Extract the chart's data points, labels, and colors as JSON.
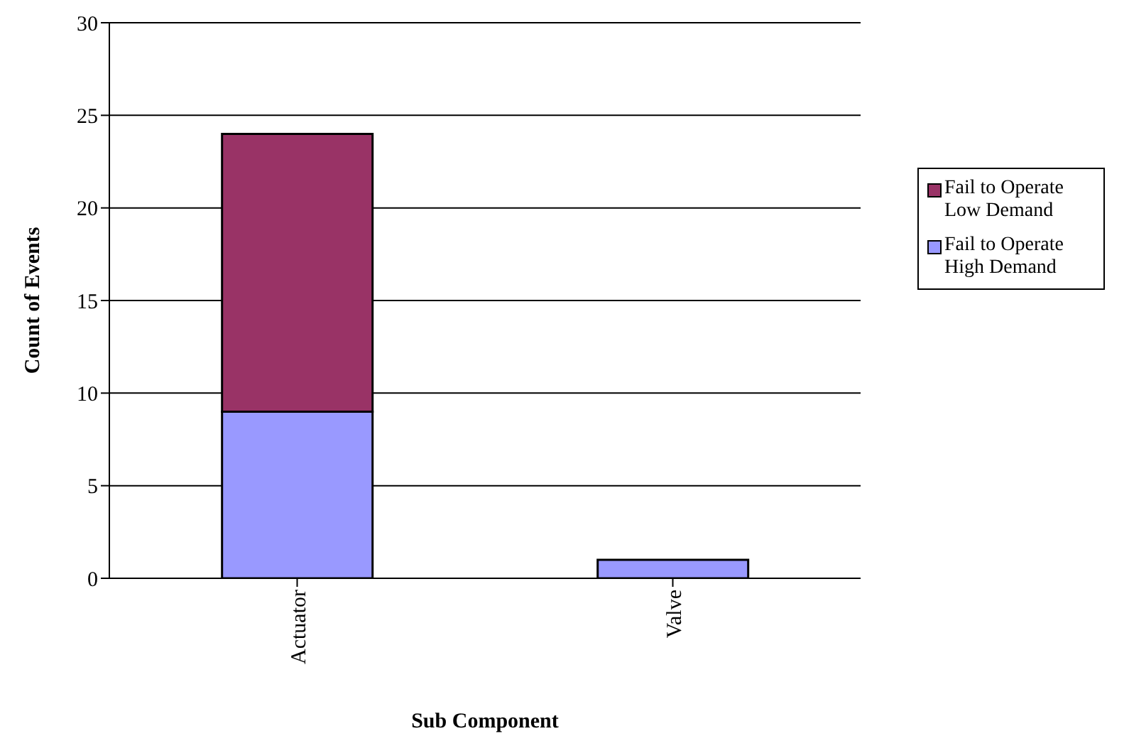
{
  "chart_data": {
    "type": "bar",
    "stacked": true,
    "xlabel": "Sub Component",
    "ylabel": "Count of Events",
    "categories": [
      "Actuator",
      "Valve"
    ],
    "series": [
      {
        "name": "Fail to Operate High Demand",
        "color": "#9999ff",
        "values": [
          9,
          1
        ]
      },
      {
        "name": "Fail to Operate Low Demand",
        "color": "#993366",
        "values": [
          15,
          0
        ]
      }
    ],
    "ylim": [
      0,
      30
    ],
    "yticks": [
      0,
      5,
      10,
      15,
      20,
      25,
      30
    ],
    "grid": "y",
    "legend": "right"
  }
}
